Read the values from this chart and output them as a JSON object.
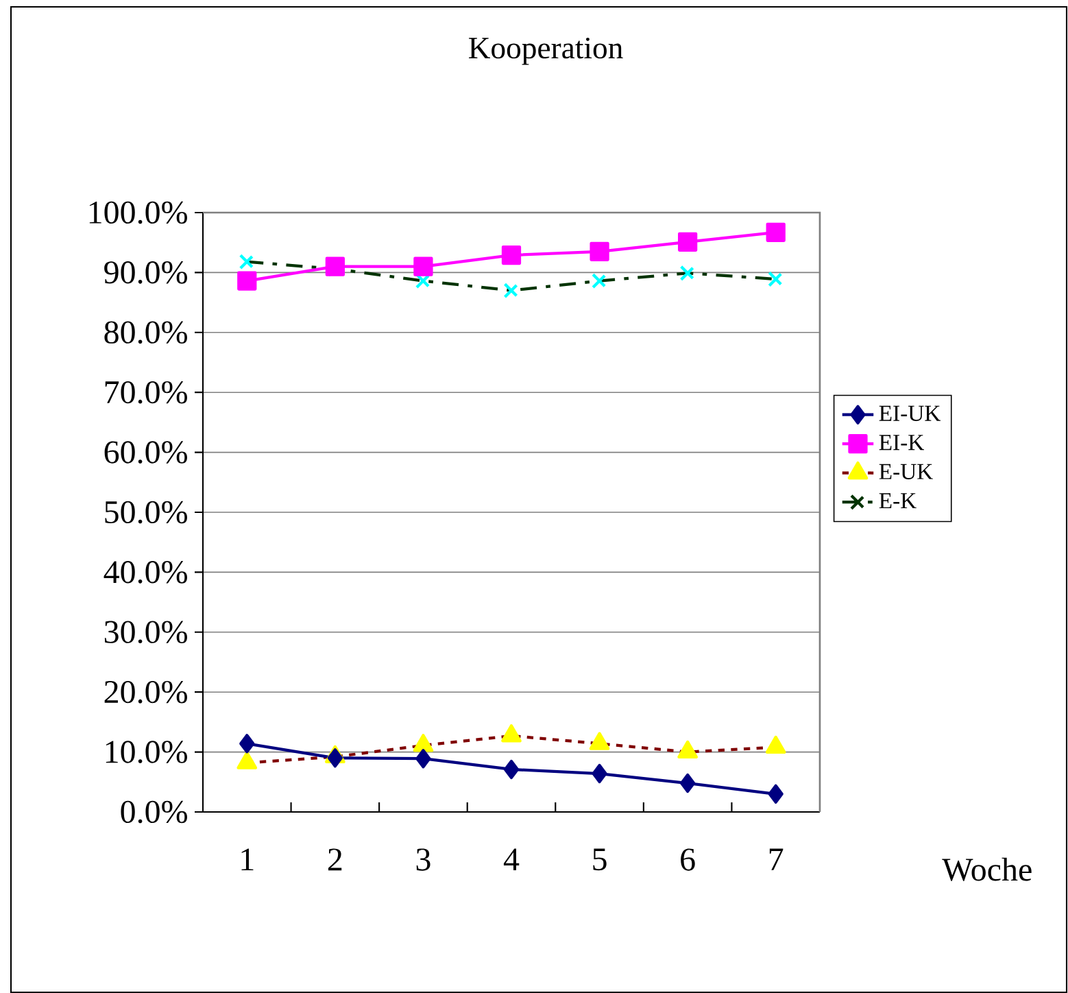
{
  "chart_data": {
    "type": "line",
    "title": "Kooperation",
    "xlabel": "Woche",
    "categories": [
      "1",
      "2",
      "3",
      "4",
      "5",
      "6",
      "7"
    ],
    "ylim": [
      0,
      100
    ],
    "yticks": [
      {
        "value": 0,
        "label": "0.0%"
      },
      {
        "value": 10,
        "label": "10.0%"
      },
      {
        "value": 20,
        "label": "20.0%"
      },
      {
        "value": 30,
        "label": "30.0%"
      },
      {
        "value": 40,
        "label": "40.0%"
      },
      {
        "value": 50,
        "label": "50.0%"
      },
      {
        "value": 60,
        "label": "60.0%"
      },
      {
        "value": 70,
        "label": "70.0%"
      },
      {
        "value": 80,
        "label": "80.0%"
      },
      {
        "value": 90,
        "label": "90.0%"
      },
      {
        "value": 100,
        "label": "100.0%"
      }
    ],
    "grid": "y",
    "legend": "right",
    "series": [
      {
        "name": "EI-UK",
        "color": "#000080",
        "marker": "diamond",
        "line_style": "solid",
        "values": [
          11.4,
          9.0,
          8.9,
          7.1,
          6.4,
          4.8,
          3.0
        ]
      },
      {
        "name": "EI-K",
        "color": "#ff00ff",
        "marker": "square",
        "line_style": "solid",
        "values": [
          88.6,
          91.0,
          91.0,
          92.9,
          93.5,
          95.1,
          96.7
        ]
      },
      {
        "name": "E-UK",
        "color": "#800000",
        "colors": [
          "#ffff00",
          "#ffff00",
          "#ffff00",
          "#ffff00",
          "#ffff00",
          "#ffff00",
          "#ffff00"
        ],
        "marker": "triangle",
        "line_style": "dotted",
        "values": [
          8.2,
          9.2,
          11.1,
          12.7,
          11.4,
          10.0,
          10.8
        ]
      },
      {
        "name": "E-K",
        "color": "#003300",
        "colors": [
          "#00ffff",
          "#00ffff",
          "#00ffff",
          "#00ffff",
          "#00ffff",
          "#00ffff",
          "#00ffff"
        ],
        "marker": "cross",
        "line_style": "dashed",
        "values": [
          91.8,
          90.6,
          88.6,
          87.0,
          88.6,
          89.9,
          88.9
        ]
      }
    ]
  }
}
